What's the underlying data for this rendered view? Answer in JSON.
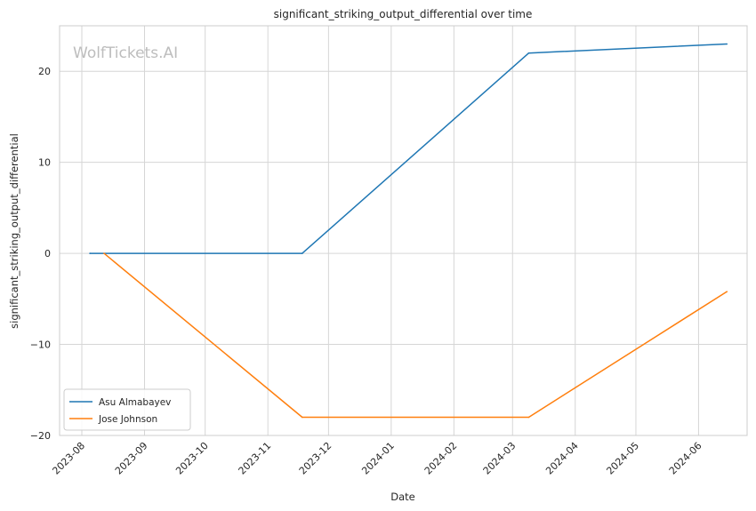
{
  "watermark": "WolfTickets.AI",
  "chart_data": {
    "type": "line",
    "title": "significant_striking_output_differential over time",
    "xlabel": "Date",
    "ylabel": "significant_striking_output_differential",
    "x_ticks": [
      "2023-08",
      "2023-09",
      "2023-10",
      "2023-11",
      "2023-12",
      "2024-01",
      "2024-02",
      "2024-03",
      "2024-04",
      "2024-05",
      "2024-06"
    ],
    "y_ticks": [
      -20,
      -10,
      0,
      10,
      20
    ],
    "ylim": [
      -20,
      25
    ],
    "xlim": [
      "2023-07-21",
      "2024-06-25"
    ],
    "grid": true,
    "legend_position": "lower-left",
    "series": [
      {
        "name": "Asu Almabayev",
        "color": "#1f77b4",
        "x": [
          "2023-08-05",
          "2023-11-18",
          "2024-03-09",
          "2024-06-15"
        ],
        "y": [
          0,
          0,
          22,
          23
        ]
      },
      {
        "name": "Jose Johnson",
        "color": "#ff7f0e",
        "x": [
          "2023-08-12",
          "2023-11-18",
          "2024-03-09",
          "2024-06-15"
        ],
        "y": [
          0,
          -18,
          -18,
          -4.2
        ]
      }
    ]
  }
}
